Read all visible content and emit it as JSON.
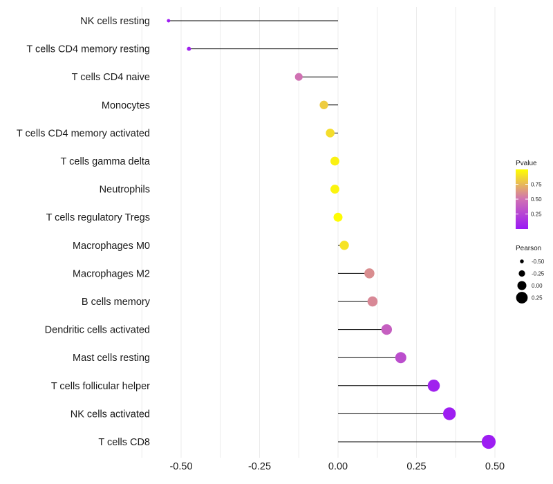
{
  "chart_data": {
    "type": "lollipop",
    "title": "",
    "xlabel": "",
    "ylabel": "",
    "xlim": [
      -0.6,
      0.55
    ],
    "x_ticks": [
      -0.5,
      -0.25,
      0,
      0.25,
      0.5
    ],
    "x_tick_labels": [
      "-0.50",
      "-0.25",
      "0.00",
      "0.25",
      "0.50"
    ],
    "grid": true,
    "categories": [
      "NK cells resting",
      "T cells CD4 memory resting",
      "T cells CD4 naive",
      "Monocytes",
      "T cells CD4 memory activated",
      "T cells gamma delta",
      "Neutrophils",
      "T cells regulatory  Tregs",
      "Macrophages M0",
      "Macrophages M2",
      "B cells memory",
      "Dendritic cells activated",
      "Mast cells resting",
      "T cells follicular helper",
      "NK cells activated",
      "T cells CD8"
    ],
    "pearson": [
      -0.54,
      -0.475,
      -0.125,
      -0.045,
      -0.025,
      -0.01,
      -0.01,
      0.0,
      0.02,
      0.1,
      0.11,
      0.155,
      0.2,
      0.305,
      0.355,
      0.48
    ],
    "pvalue": [
      0.02,
      0.05,
      0.5,
      0.82,
      0.88,
      0.95,
      0.96,
      0.99,
      0.9,
      0.6,
      0.58,
      0.4,
      0.3,
      0.05,
      0.03,
      0.02
    ],
    "legend": {
      "color_title": "Pvalue",
      "color_ticks": [
        0.25,
        0.5,
        0.75
      ],
      "color_tick_labels": [
        "0.25",
        "0.50",
        "0.75"
      ],
      "color_low": "#9b19f5",
      "color_mid": "#d071b3",
      "color_high": "#ffff00",
      "size_title": "Pearson",
      "size_values": [
        -0.5,
        -0.25,
        0.0,
        0.25
      ],
      "size_labels": [
        "-0.50",
        "-0.25",
        "0.00",
        "0.25"
      ],
      "placement": "right"
    }
  }
}
